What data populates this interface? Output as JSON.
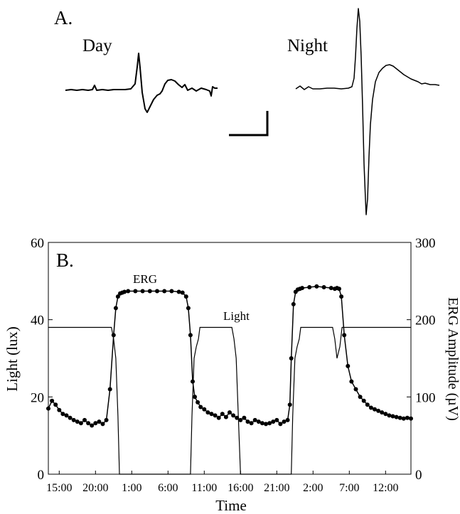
{
  "panel_a": {
    "label": "A.",
    "day_label": "Day",
    "night_label": "Night"
  },
  "chart_data": {
    "type": "line",
    "panel_label": "B.",
    "xlabel": "Time",
    "x_ticks": [
      "15:00",
      "20:00",
      "1:00",
      "6:00",
      "11:00",
      "16:00",
      "21:00",
      "2:00",
      "7:00",
      "12:00"
    ],
    "x_range_hours": [
      0,
      50
    ],
    "ylabel_left": "Light (lux)",
    "ylim_left": [
      0,
      60
    ],
    "yticks_left": [
      0,
      20,
      40,
      60
    ],
    "ylabel_right": "ERG Amplitude (µV)",
    "ylim_right": [
      0,
      300
    ],
    "yticks_right": [
      0,
      100,
      200,
      300
    ],
    "annotations": [
      "ERG",
      "Light"
    ],
    "series": [
      {
        "name": "Light",
        "axis": "left",
        "x": [
          0,
          8.7,
          9.0,
          9.3,
          9.6,
          9.8,
          19.6,
          19.8,
          20.1,
          20.4,
          20.7,
          20.9,
          21.5,
          23.5,
          25.3,
          25.6,
          25.9,
          26.2,
          26.5,
          33.5,
          33.7,
          34.0,
          34.3,
          34.6,
          34.8,
          35.4,
          37.5,
          39.2,
          39.5,
          39.8,
          40.2,
          40.5,
          50
        ],
        "y": [
          38,
          38,
          35,
          30,
          15,
          0,
          0,
          15,
          30,
          33,
          35,
          38,
          38,
          38,
          38,
          35,
          30,
          15,
          0,
          0,
          15,
          30,
          33,
          35,
          38,
          38,
          38,
          38,
          35,
          30,
          33,
          38,
          38
        ]
      },
      {
        "name": "ERG",
        "axis": "right",
        "x": [
          0,
          0.5,
          1,
          1.5,
          2,
          2.5,
          3,
          3.5,
          4,
          4.5,
          5,
          5.5,
          6,
          6.5,
          7,
          7.5,
          8,
          8.5,
          9,
          9.3,
          9.6,
          9.9,
          10.2,
          10.5,
          11,
          12,
          13,
          14,
          15,
          16,
          17,
          18,
          18.5,
          19,
          19.3,
          19.6,
          19.9,
          20.2,
          20.6,
          21,
          21.5,
          22,
          22.5,
          23,
          23.5,
          24,
          24.5,
          25,
          25.5,
          26,
          26.5,
          27,
          27.5,
          28,
          28.5,
          29,
          29.5,
          30,
          30.5,
          31,
          31.5,
          32,
          32.5,
          33,
          33.3,
          33.5,
          33.8,
          34.1,
          34.4,
          34.7,
          35,
          36,
          37,
          38,
          39,
          39.5,
          39.8,
          40.1,
          40.4,
          40.8,
          41.3,
          41.8,
          42.4,
          43,
          43.5,
          44,
          44.5,
          45,
          45.5,
          46,
          46.5,
          47,
          47.5,
          48,
          48.5,
          49,
          49.5,
          50
        ],
        "y": [
          85,
          95,
          90,
          83,
          78,
          76,
          73,
          70,
          68,
          66,
          70,
          66,
          63,
          66,
          68,
          65,
          70,
          110,
          180,
          215,
          230,
          234,
          235,
          236,
          237,
          237,
          237,
          237,
          237,
          237,
          237,
          236,
          235,
          230,
          215,
          180,
          120,
          100,
          93,
          87,
          84,
          80,
          78,
          76,
          73,
          78,
          74,
          80,
          76,
          73,
          70,
          73,
          68,
          66,
          70,
          68,
          66,
          65,
          66,
          68,
          70,
          65,
          68,
          70,
          90,
          150,
          220,
          236,
          239,
          240,
          241,
          242,
          243,
          242,
          241,
          240,
          241,
          240,
          230,
          180,
          140,
          120,
          110,
          100,
          95,
          90,
          86,
          84,
          82,
          80,
          78,
          76,
          75,
          74,
          73,
          72,
          73,
          72
        ]
      }
    ]
  }
}
